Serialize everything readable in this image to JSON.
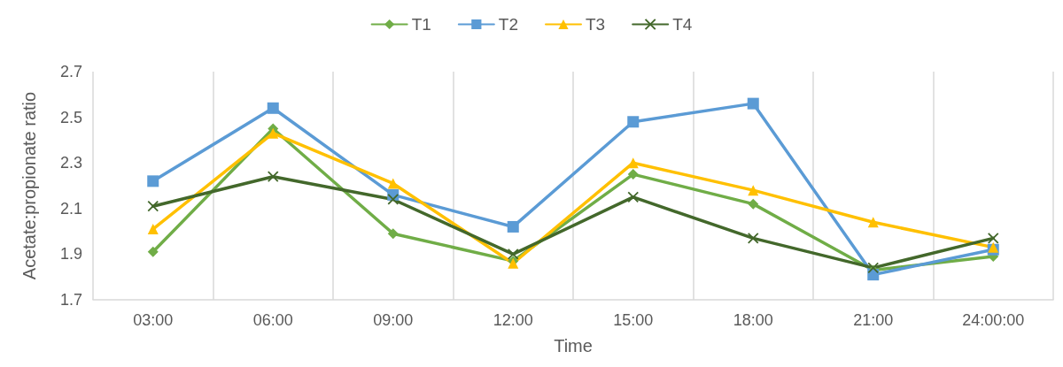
{
  "chart_data": {
    "type": "line",
    "xlabel": "Time",
    "ylabel": "Acetate:propionate ratio",
    "categories": [
      "03:00",
      "06:00",
      "09:00",
      "12:00",
      "15:00",
      "18:00",
      "21:00",
      "24:00:00"
    ],
    "series": [
      {
        "name": "T1",
        "color": "#70ad47",
        "marker": "diamond",
        "values": [
          1.91,
          2.45,
          1.99,
          1.87,
          2.25,
          2.12,
          1.83,
          1.89
        ]
      },
      {
        "name": "T2",
        "color": "#5b9bd5",
        "marker": "square",
        "values": [
          2.22,
          2.54,
          2.16,
          2.02,
          2.48,
          2.56,
          1.81,
          1.92
        ]
      },
      {
        "name": "T3",
        "color": "#ffc000",
        "marker": "triangle",
        "values": [
          2.01,
          2.43,
          2.21,
          1.86,
          2.3,
          2.18,
          2.04,
          1.93
        ]
      },
      {
        "name": "T4",
        "color": "#43682b",
        "marker": "cross",
        "values": [
          2.11,
          2.24,
          2.14,
          1.9,
          2.15,
          1.97,
          1.84,
          1.97
        ]
      }
    ],
    "ylim": [
      1.7,
      2.7
    ],
    "yticks": [
      1.7,
      1.9,
      2.1,
      2.3,
      2.5,
      2.7
    ],
    "grid": "x",
    "legend": "top",
    "line_style": "solid"
  }
}
